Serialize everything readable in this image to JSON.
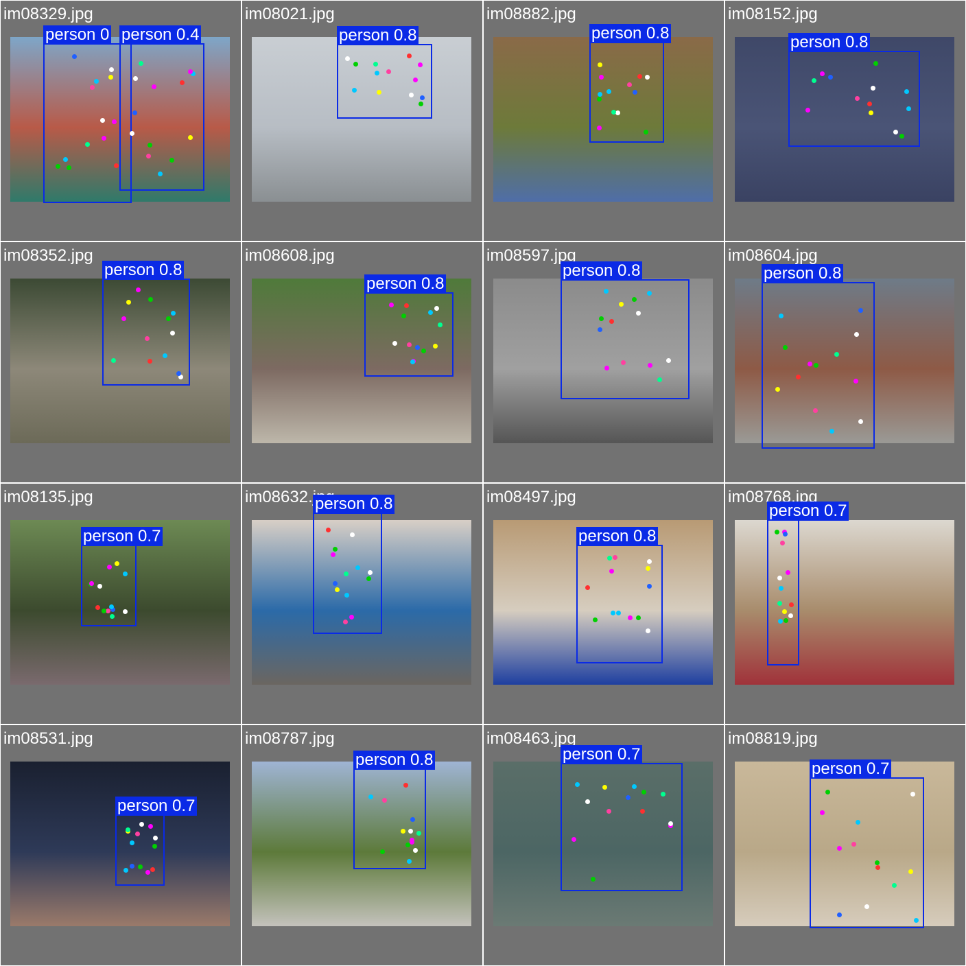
{
  "tiles": [
    {
      "file": "im08329.jpg",
      "scene": [
        "#7ea6c8",
        "#b85a48",
        "#2f7a6a"
      ],
      "boxes": [
        "person 0",
        "person 0.4"
      ]
    },
    {
      "file": "im08021.jpg",
      "scene": [
        "#c9ced3",
        "#b7bdc4",
        "#8a8f92"
      ],
      "boxes": [
        "person 0.8"
      ]
    },
    {
      "file": "im08882.jpg",
      "scene": [
        "#8a6a48",
        "#6d7a3a",
        "#4f6ea8"
      ],
      "boxes": [
        "person 0.8"
      ]
    },
    {
      "file": "im08152.jpg",
      "scene": [
        "#3f4868",
        "#4a5476",
        "#3a4262"
      ],
      "boxes": [
        "person 0.8"
      ]
    },
    {
      "file": "im08352.jpg",
      "scene": [
        "#3c4a34",
        "#8d8879",
        "#6c6a58"
      ],
      "boxes": [
        "person 0.8"
      ]
    },
    {
      "file": "im08608.jpg",
      "scene": [
        "#4f7a3a",
        "#7d6a62",
        "#bdb7aa"
      ],
      "boxes": [
        "person 0.8"
      ]
    },
    {
      "file": "im08597.jpg",
      "scene": [
        "#8b8b8b",
        "#a0a0a0",
        "#555555"
      ],
      "boxes": [
        "person 0.8"
      ]
    },
    {
      "file": "im08604.jpg",
      "scene": [
        "#6e7b88",
        "#8e5a46",
        "#9a9a96"
      ],
      "boxes": [
        "person 0.8"
      ]
    },
    {
      "file": "im08135.jpg",
      "scene": [
        "#6d8a54",
        "#3c4a2e",
        "#7a6a6e"
      ],
      "boxes": [
        "person 0.7"
      ]
    },
    {
      "file": "im08632.jpg",
      "scene": [
        "#d8cfc6",
        "#2b6aa8",
        "#6b6660"
      ],
      "boxes": [
        "person 0.8"
      ]
    },
    {
      "file": "im08497.jpg",
      "scene": [
        "#b89a74",
        "#d6cdbf",
        "#1e3fa0"
      ],
      "boxes": [
        "person 0.8"
      ]
    },
    {
      "file": "im08768.jpg",
      "scene": [
        "#dcd8d0",
        "#a88c6c",
        "#a0323a"
      ],
      "boxes": [
        "person 0.7"
      ]
    },
    {
      "file": "im08531.jpg",
      "scene": [
        "#1a2030",
        "#2e3a58",
        "#9a7a6a"
      ],
      "boxes": [
        "person 0.7"
      ]
    },
    {
      "file": "im08787.jpg",
      "scene": [
        "#9fb4d4",
        "#5d7a3a",
        "#c4c2bc"
      ],
      "boxes": [
        "person 0.8"
      ]
    },
    {
      "file": "im08463.jpg",
      "scene": [
        "#5a6e68",
        "#4c6664",
        "#6b7a74"
      ],
      "boxes": [
        "person 0.7"
      ]
    },
    {
      "file": "im08819.jpg",
      "scene": [
        "#c9b89a",
        "#b9a888",
        "#d6ccbc"
      ],
      "boxes": [
        "person 0.7"
      ]
    }
  ],
  "colors": {
    "box": "#0a2ae6",
    "tile_bg": "#727272"
  }
}
